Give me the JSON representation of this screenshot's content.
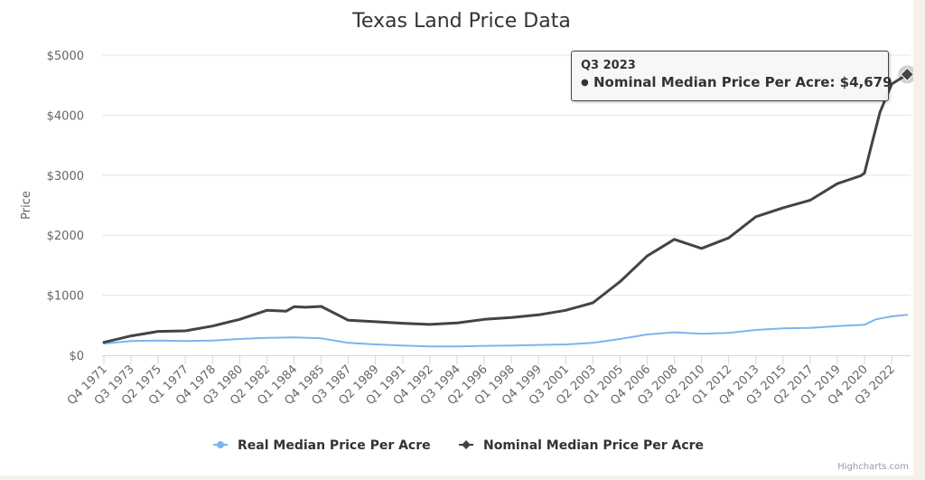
{
  "chart_data": {
    "type": "line",
    "title": "Texas Land Price Data",
    "ylabel": "Price",
    "xlabel": "",
    "ylim": [
      0,
      5000
    ],
    "y_ticks": [
      "$0",
      "$1000",
      "$2000",
      "$3000",
      "$4000",
      "$5000"
    ],
    "y_tick_values": [
      0,
      1000,
      2000,
      3000,
      4000,
      5000
    ],
    "x_range": [
      "Q4 1971",
      "Q3 2023"
    ],
    "x_tick_labels": [
      "Q4 1971",
      "Q3 1973",
      "Q2 1975",
      "Q1 1977",
      "Q4 1978",
      "Q3 1980",
      "Q2 1982",
      "Q1 1984",
      "Q4 1985",
      "Q3 1987",
      "Q2 1989",
      "Q1 1991",
      "Q4 1992",
      "Q3 1994",
      "Q2 1996",
      "Q1 1998",
      "Q4 1999",
      "Q3 2001",
      "Q2 2003",
      "Q1 2005",
      "Q4 2006",
      "Q3 2008",
      "Q2 2010",
      "Q1 2012",
      "Q4 2013",
      "Q3 2015",
      "Q2 2017",
      "Q1 2019",
      "Q4 2020",
      "Q3 2022"
    ],
    "grid": "horizontal",
    "legend_position": "bottom-center",
    "series": [
      {
        "name": "Real Median Price Per Acre",
        "color": "#7cb5ec",
        "marker": "circle",
        "points": [
          [
            "Q4 1971",
            195
          ],
          [
            "Q3 1973",
            236
          ],
          [
            "Q2 1975",
            246
          ],
          [
            "Q1 1977",
            236
          ],
          [
            "Q4 1978",
            246
          ],
          [
            "Q3 1980",
            271
          ],
          [
            "Q2 1982",
            291
          ],
          [
            "Q1 1984",
            296
          ],
          [
            "Q4 1985",
            281
          ],
          [
            "Q3 1987",
            206
          ],
          [
            "Q2 1989",
            181
          ],
          [
            "Q1 1991",
            161
          ],
          [
            "Q4 1992",
            146
          ],
          [
            "Q3 1994",
            146
          ],
          [
            "Q2 1996",
            156
          ],
          [
            "Q1 1998",
            161
          ],
          [
            "Q4 1999",
            171
          ],
          [
            "Q3 2001",
            181
          ],
          [
            "Q2 2003",
            206
          ],
          [
            "Q1 2005",
            271
          ],
          [
            "Q4 2006",
            347
          ],
          [
            "Q3 2008",
            382
          ],
          [
            "Q2 2010",
            357
          ],
          [
            "Q1 2012",
            372
          ],
          [
            "Q4 2013",
            422
          ],
          [
            "Q3 2015",
            447
          ],
          [
            "Q2 2017",
            457
          ],
          [
            "Q1 2019",
            487
          ],
          [
            "Q4 2020",
            508
          ],
          [
            "Q3 2021",
            600
          ],
          [
            "Q3 2022",
            648
          ],
          [
            "Q3 2023",
            673
          ]
        ]
      },
      {
        "name": "Nominal Median Price Per Acre",
        "color": "#434348",
        "marker": "diamond",
        "points": [
          [
            "Q4 1971",
            215
          ],
          [
            "Q3 1973",
            322
          ],
          [
            "Q2 1975",
            397
          ],
          [
            "Q1 1977",
            407
          ],
          [
            "Q4 1978",
            487
          ],
          [
            "Q3 1980",
            598
          ],
          [
            "Q2 1982",
            749
          ],
          [
            "Q3 1983",
            735
          ],
          [
            "Q1 1984",
            809
          ],
          [
            "Q4 1984",
            800
          ],
          [
            "Q4 1985",
            814
          ],
          [
            "Q3 1987",
            583
          ],
          [
            "Q2 1989",
            558
          ],
          [
            "Q1 1991",
            533
          ],
          [
            "Q4 1992",
            513
          ],
          [
            "Q3 1994",
            538
          ],
          [
            "Q2 1996",
            598
          ],
          [
            "Q1 1998",
            630
          ],
          [
            "Q4 1999",
            673
          ],
          [
            "Q3 2001",
            749
          ],
          [
            "Q2 2003",
            874
          ],
          [
            "Q1 2005",
            1226
          ],
          [
            "Q4 2006",
            1653
          ],
          [
            "Q3 2008",
            1930
          ],
          [
            "Q2 2010",
            1780
          ],
          [
            "Q1 2012",
            1955
          ],
          [
            "Q4 2013",
            2307
          ],
          [
            "Q3 2015",
            2457
          ],
          [
            "Q2 2017",
            2583
          ],
          [
            "Q1 2019",
            2859
          ],
          [
            "Q3 2020",
            2990
          ],
          [
            "Q4 2020",
            3035
          ],
          [
            "Q2 2021",
            3550
          ],
          [
            "Q4 2021",
            4050
          ],
          [
            "Q3 2022",
            4518
          ],
          [
            "Q3 2023",
            4679
          ]
        ]
      }
    ]
  },
  "tooltip": {
    "title": "Q3 2023",
    "bullet": "●",
    "line": "Nominal Median Price Per Acre: $4,679"
  },
  "credits": "Highcharts.com"
}
